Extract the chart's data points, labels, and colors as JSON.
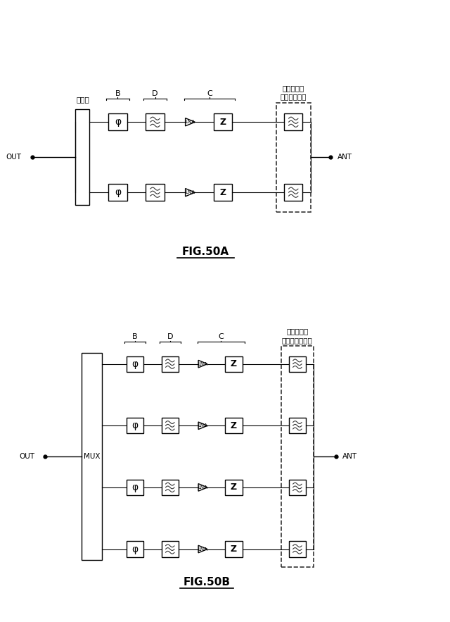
{
  "fig_width": 6.4,
  "fig_height": 8.83,
  "bg_color": "#ffffff",
  "fig50a": {
    "title": "FIG.50A",
    "combiner_label": "結合器",
    "filter_label": "フィルタ／\nダイプレクサ",
    "out_label": "OUT",
    "ant_label": "ANT",
    "label_B": "B",
    "label_D": "D",
    "label_C": "C"
  },
  "fig50b": {
    "title": "FIG.50B",
    "mux_label": "MUX",
    "filter_label": "フィルタ／\nマルチプレクサ",
    "out_label": "OUT",
    "ant_label": "ANT",
    "label_B": "B",
    "label_D": "D",
    "label_C": "C"
  }
}
